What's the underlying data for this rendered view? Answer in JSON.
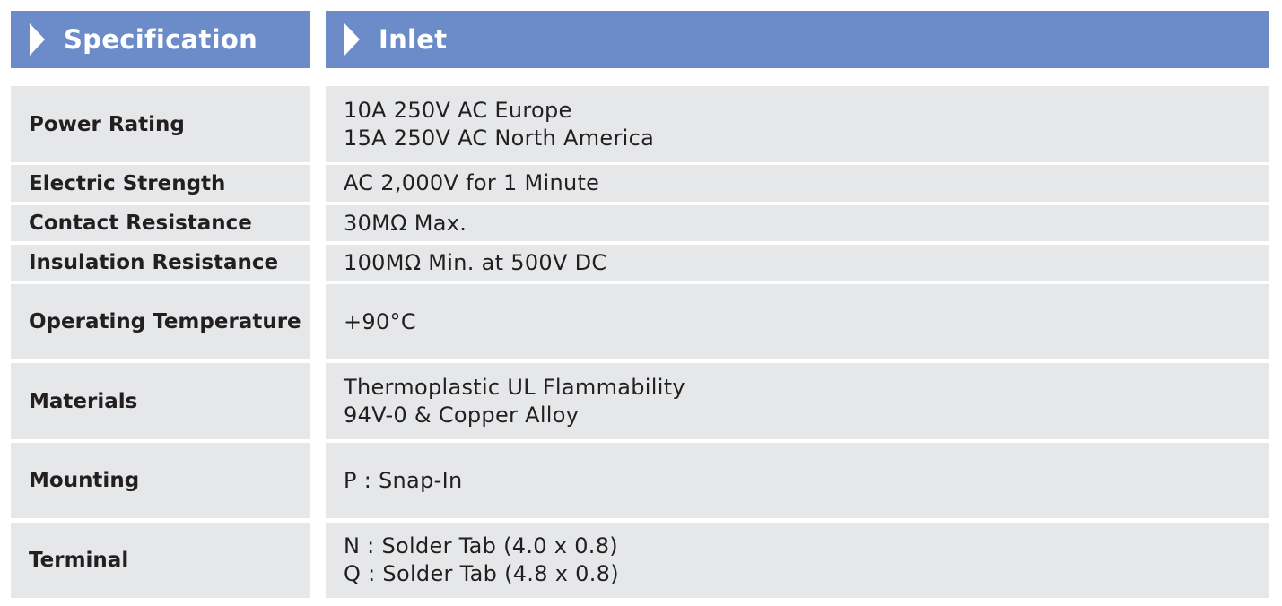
{
  "header": {
    "left_title": "Specification",
    "right_title": "Inlet",
    "color": "#6b8cc8"
  },
  "rows": [
    {
      "label": "Power Rating",
      "values": [
        "10A 250V AC Europe",
        "15A 250V AC North America"
      ]
    },
    {
      "label": "Electric Strength",
      "values": [
        "AC 2,000V for 1 Minute"
      ]
    },
    {
      "label": "Contact Resistance",
      "values": [
        "30MΩ Max."
      ]
    },
    {
      "label": "Insulation Resistance",
      "values": [
        "100MΩ Min. at 500V DC"
      ]
    },
    {
      "label": "Operating Temperature",
      "values": [
        "+90°C"
      ]
    },
    {
      "label": "Materials",
      "values": [
        "Thermoplastic UL Flammability",
        "94V-0 & Copper Alloy"
      ]
    },
    {
      "label": "Mounting",
      "values": [
        "P : Snap-In"
      ]
    },
    {
      "label": "Terminal",
      "values": [
        "N : Solder Tab (4.0 x 0.8)",
        "Q : Solder Tab (4.8 x 0.8)"
      ]
    }
  ]
}
